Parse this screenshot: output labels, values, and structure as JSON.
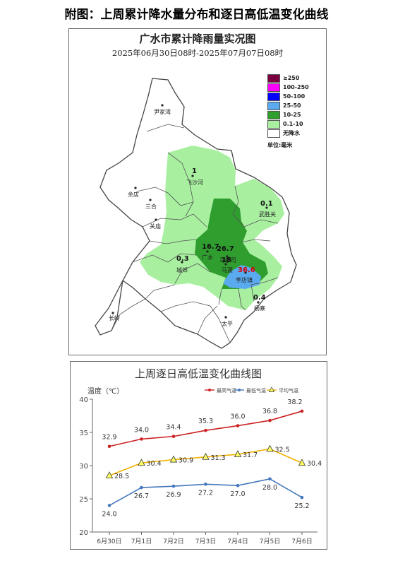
{
  "page_title": "附图：上周累计降水量分布和逐日高低温变化曲线",
  "map": {
    "title": "广水市累计降雨量实况图",
    "subtitle": "2025年06月30日08时-2025年07月07日08时",
    "legend": [
      {
        "label": "≥250",
        "color": "#7a0040"
      },
      {
        "label": "100-250",
        "color": "#ff00ff"
      },
      {
        "label": "50-100",
        "color": "#0000ff"
      },
      {
        "label": "25-50",
        "color": "#5aaaf0"
      },
      {
        "label": "10-25",
        "color": "#2f9e2f"
      },
      {
        "label": "0.1-10",
        "color": "#a8f0a0"
      },
      {
        "label": "无降水",
        "color": "#ffffff"
      }
    ],
    "unit": "单位:毫米",
    "places": [
      {
        "name": "尹家湾"
      },
      {
        "name": "飞沙河"
      },
      {
        "name": "余店"
      },
      {
        "name": "三合"
      },
      {
        "name": "关庙"
      },
      {
        "name": "武胜关"
      },
      {
        "name": "广水"
      },
      {
        "name": "马都司"
      },
      {
        "name": "城郊"
      },
      {
        "name": "马蓬"
      },
      {
        "name": "李店镇"
      },
      {
        "name": "杨寨"
      },
      {
        "name": "长岭"
      },
      {
        "name": "太平"
      }
    ],
    "values": [
      {
        "text": "1"
      },
      {
        "text": "0.1"
      },
      {
        "text": "16.7"
      },
      {
        "text": "26.7"
      },
      {
        "text": "18"
      },
      {
        "text": "0.3"
      },
      {
        "text": "36.6"
      },
      {
        "text": "0.4"
      }
    ]
  },
  "chart_data": {
    "type": "line",
    "title": "上周逐日高低温变化曲线图",
    "ylabel": "温度（℃）",
    "categories": [
      "6月30日",
      "7月1日",
      "7月2日",
      "7月3日",
      "7月4日",
      "7月5日",
      "7月6日"
    ],
    "ylim": [
      20,
      40
    ],
    "yticks": [
      "20",
      "25",
      "30",
      "35",
      "40"
    ],
    "legend_position": "top-right",
    "grid": false,
    "series": [
      {
        "name": "最高气温",
        "color": "#cc2222",
        "marker": "circle",
        "values": [
          32.9,
          34.0,
          34.4,
          35.3,
          36.0,
          36.8,
          38.2
        ],
        "labels": [
          "32.9",
          "34.0",
          "34.4",
          "35.3",
          "36.0",
          "36.8",
          "38.2"
        ]
      },
      {
        "name": "最低气温",
        "color": "#4477bb",
        "marker": "circle",
        "values": [
          24.0,
          26.7,
          26.9,
          27.2,
          27.0,
          28.0,
          25.2
        ],
        "labels": [
          "24.0",
          "26.7",
          "26.9",
          "27.2",
          "27.0",
          "28.0",
          "25.2"
        ]
      },
      {
        "name": "平均气温",
        "color": "#f0b000",
        "marker": "triangle",
        "values": [
          28.5,
          30.4,
          30.9,
          31.3,
          31.7,
          32.5,
          30.4
        ],
        "labels": [
          "28.5",
          "30.4",
          "30.9",
          "31.3",
          "31.7",
          "32.5",
          "30.4"
        ]
      }
    ]
  }
}
